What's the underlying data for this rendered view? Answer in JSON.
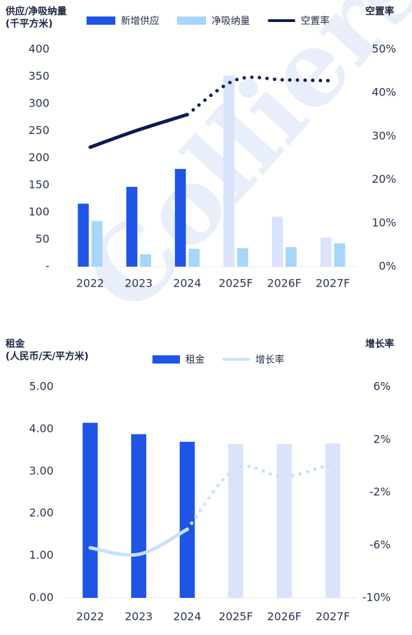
{
  "watermark": "Colliers",
  "chart_data": [
    {
      "type": "bar",
      "title": "",
      "ylabel_left_line1": "供应/净吸纳量",
      "ylabel_left_line2": "(千平方米)",
      "ylabel_right": "空置率",
      "categories": [
        "2022",
        "2023",
        "2024",
        "2025F",
        "2026F",
        "2027F"
      ],
      "series": [
        {
          "name": "新增供应",
          "type": "bar",
          "color": "#1f55e6",
          "forecast_color": "#dbe3fb",
          "values": [
            116,
            147,
            180,
            352,
            92,
            54
          ]
        },
        {
          "name": "净吸纳量",
          "type": "bar",
          "color": "#a6d6fa",
          "values": [
            84,
            23,
            33,
            34,
            36,
            43
          ]
        },
        {
          "name": "空置率",
          "type": "line",
          "axis": "right",
          "color": "#0c1a4f",
          "values": [
            27.5,
            31.5,
            35,
            43,
            43,
            42.8
          ]
        }
      ],
      "forecast_from_index": 3,
      "ylim": [
        0,
        400
      ],
      "yticks": [
        "-",
        "50",
        "100",
        "150",
        "200",
        "250",
        "300",
        "350",
        "400"
      ],
      "y2lim": [
        0,
        50
      ],
      "y2ticks": [
        "0%",
        "10%",
        "20%",
        "30%",
        "40%",
        "50%"
      ],
      "legend_position": "top"
    },
    {
      "type": "bar",
      "title": "",
      "ylabel_left_line1": "租金",
      "ylabel_left_line2": "(人民币/天/平方米)",
      "ylabel_right": "增长率",
      "categories": [
        "2022",
        "2023",
        "2024",
        "2025F",
        "2026F",
        "2027F"
      ],
      "series": [
        {
          "name": "租金",
          "type": "bar",
          "color": "#1f55e6",
          "forecast_color": "#dbe3fb",
          "values": [
            4.15,
            3.88,
            3.7,
            3.65,
            3.65,
            3.66
          ]
        },
        {
          "name": "增长率",
          "type": "line",
          "axis": "right",
          "color": "#c6e2fb",
          "values": [
            -6.2,
            -6.7,
            -4.8,
            -0.2,
            -0.8,
            0.2
          ]
        }
      ],
      "forecast_from_index": 3,
      "ylim": [
        0,
        5
      ],
      "yticks": [
        "0.00",
        "1.00",
        "2.00",
        "3.00",
        "4.00",
        "5.00"
      ],
      "y2lim": [
        -10,
        6
      ],
      "y2ticks": [
        "-10%",
        "-6%",
        "-2%",
        "2%",
        "6%"
      ],
      "legend_position": "top"
    }
  ]
}
